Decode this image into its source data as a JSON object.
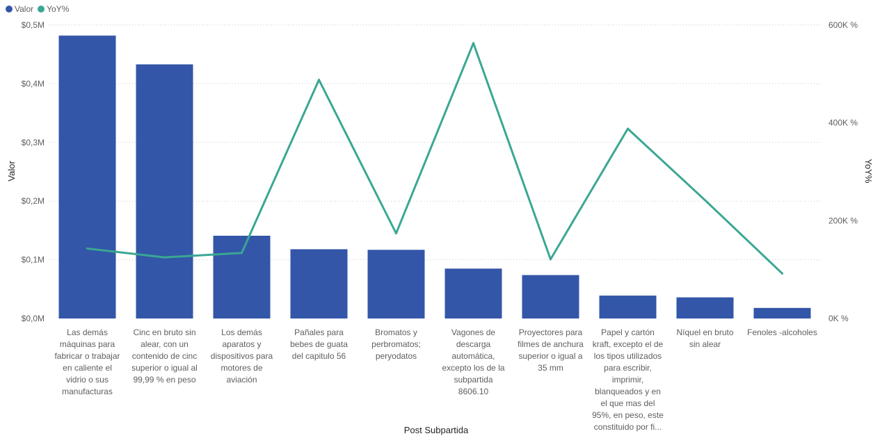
{
  "chart_data": {
    "type": "bar",
    "xlabel": "Post Subpartida",
    "ylabel": "Valor",
    "y2label": "YoY%",
    "ylim": [
      0,
      0.5
    ],
    "y2lim": [
      0,
      600
    ],
    "legend_position": "top-left",
    "grid": true,
    "y_ticks": [
      "$0,0M",
      "$0,1M",
      "$0,2M",
      "$0,3M",
      "$0,4M",
      "$0,5M"
    ],
    "y2_ticks": [
      "0K %",
      "200K %",
      "400K %",
      "600K %"
    ],
    "categories": [
      [
        "Las demás",
        "máquinas para",
        "fabricar o trabajar",
        "en caliente el",
        "vidrio o sus",
        "manufacturas"
      ],
      [
        "Cinc en bruto sin",
        "alear, con un",
        "contenido de cinc",
        "superior o igual al",
        "99,99 % en peso"
      ],
      [
        "Los demás",
        "aparatos y",
        "dispositivos para",
        "motores de",
        "aviación"
      ],
      [
        "Pañales para",
        "bebes de guata",
        "del capitulo 56"
      ],
      [
        "Bromatos y",
        "perbromatos;",
        "peryodatos"
      ],
      [
        "Vagones de",
        "descarga",
        "automática,",
        "excepto los de la",
        "subpartida",
        "8606.10"
      ],
      [
        "Proyectores para",
        "filmes de anchura",
        "superior o igual a",
        "35 mm"
      ],
      [
        "Papel y cartón",
        "kraft, excepto el de",
        "los tipos utilizados",
        "para escribir,",
        "imprimir,",
        "blanqueados y en",
        "el que mas del",
        "95%, en peso, este",
        "constituido por fi..."
      ],
      [
        "Níquel en bruto",
        "sin alear"
      ],
      [
        "Fenoles -alcoholes"
      ]
    ],
    "series": [
      {
        "name": "Valor",
        "type": "bar",
        "axis": "left",
        "color": "#3356a8",
        "values": [
          0.482,
          0.433,
          0.141,
          0.118,
          0.117,
          0.085,
          0.074,
          0.039,
          0.036,
          0.018
        ]
      },
      {
        "name": "YoY%",
        "type": "line",
        "axis": "right",
        "color": "#3aa793",
        "values": [
          143,
          125,
          134,
          488,
          174,
          563,
          121,
          388,
          242,
          92
        ]
      }
    ]
  }
}
